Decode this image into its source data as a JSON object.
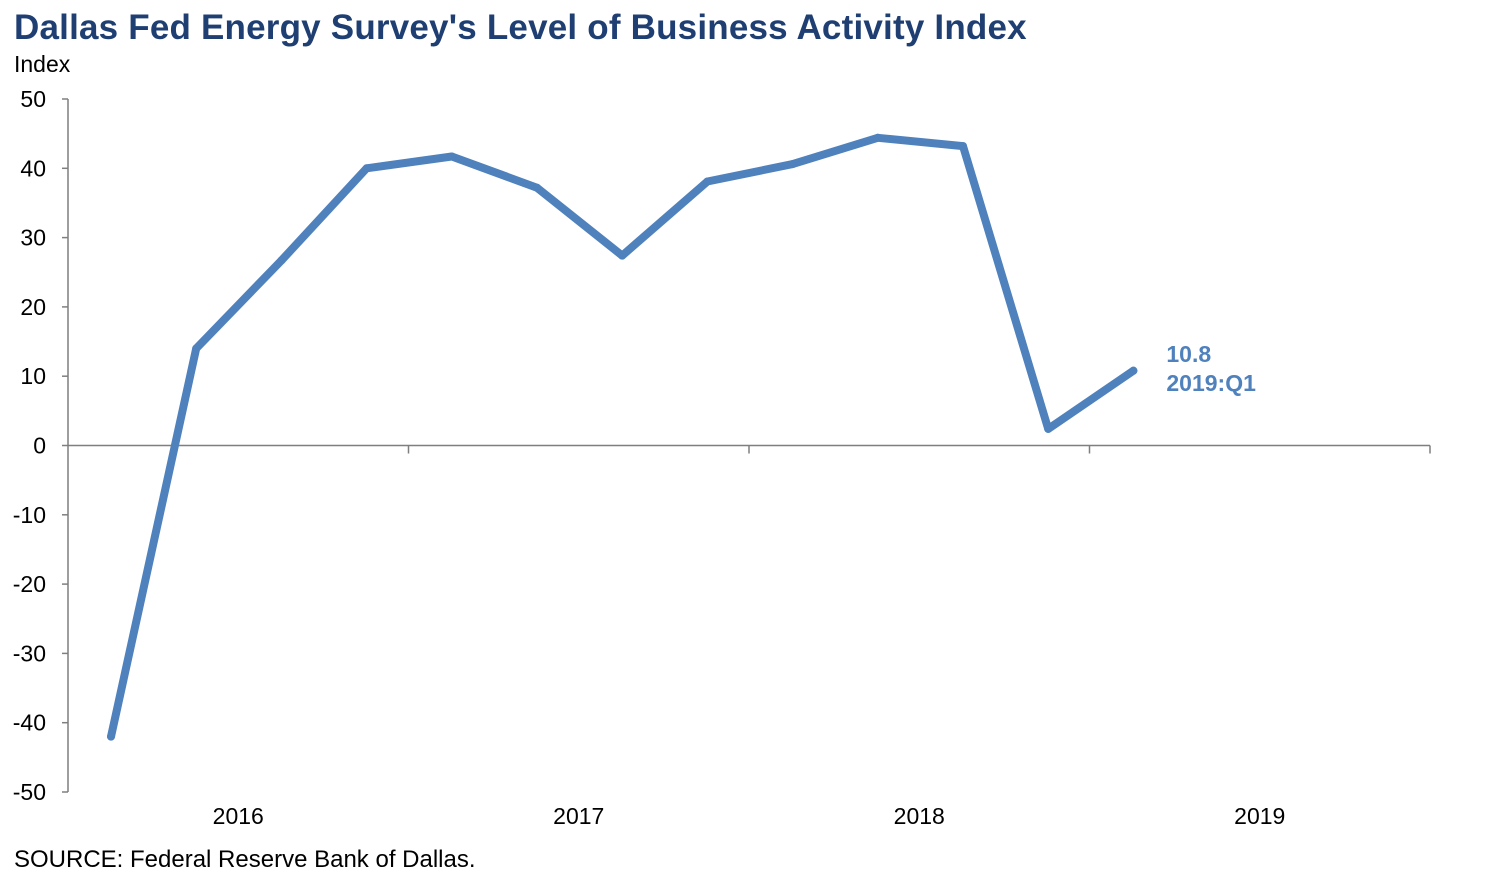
{
  "page": {
    "title": "Dallas Fed Energy Survey's Level of Business Activity Index",
    "source": "SOURCE: Federal Reserve Bank of Dallas."
  },
  "chart_data": {
    "type": "line",
    "title": "Dallas Fed Energy Survey's Level of Business Activity Index",
    "xlabel": "",
    "ylabel": "Index",
    "ylim": [
      -50,
      50
    ],
    "yticks": [
      50,
      40,
      30,
      20,
      10,
      0,
      -10,
      -20,
      -30,
      -40,
      -50
    ],
    "year_labels": [
      "2016",
      "2017",
      "2018",
      "2019"
    ],
    "grid": false,
    "legend": "none",
    "series_color": "#4F81BD",
    "title_color": "#1F3F73",
    "series": [
      {
        "x": [
          "2016:Q1",
          "2016:Q2",
          "2016:Q3",
          "2016:Q4",
          "2017:Q1",
          "2017:Q2",
          "2017:Q3",
          "2017:Q4",
          "2018:Q1",
          "2018:Q2",
          "2018:Q3",
          "2018:Q4",
          "2019:Q1"
        ],
        "values": [
          -42,
          14,
          26.7,
          40,
          41.7,
          37.2,
          27.4,
          38.1,
          40.6,
          44.4,
          43.2,
          2.4,
          10.8
        ]
      }
    ],
    "annotation": {
      "value_label": "10.8",
      "period_label": "2019:Q1"
    }
  }
}
